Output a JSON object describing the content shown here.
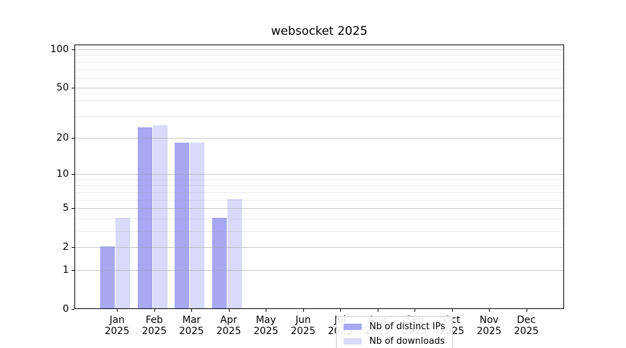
{
  "chart_data": {
    "type": "bar",
    "title": "websocket 2025",
    "scale": "log1p",
    "xlabel": "",
    "ylabel": "",
    "ylim": [
      0,
      109
    ],
    "grid": true,
    "legend_position": "lower center",
    "categories": [
      {
        "month": "Jan",
        "year": "2025"
      },
      {
        "month": "Feb",
        "year": "2025"
      },
      {
        "month": "Mar",
        "year": "2025"
      },
      {
        "month": "Apr",
        "year": "2025"
      },
      {
        "month": "May",
        "year": "2025"
      },
      {
        "month": "Jun",
        "year": "2025"
      },
      {
        "month": "Jul",
        "year": "2025"
      },
      {
        "month": "Aug",
        "year": "2025"
      },
      {
        "month": "Sep",
        "year": "2025"
      },
      {
        "month": "Oct",
        "year": "2025"
      },
      {
        "month": "Nov",
        "year": "2025"
      },
      {
        "month": "Dec",
        "year": "2025"
      }
    ],
    "series": [
      {
        "name": "Nb of distinct IPs",
        "color": "#a7a7f2",
        "values": [
          2,
          24,
          18,
          4,
          0,
          0,
          0,
          0,
          0,
          0,
          0,
          0
        ]
      },
      {
        "name": "Nb of downloads",
        "color": "#d9d9f9",
        "values": [
          4,
          25,
          18,
          6,
          0,
          0,
          0,
          0,
          0,
          0,
          0,
          0
        ]
      }
    ],
    "yticks": [
      0,
      1,
      2,
      5,
      10,
      20,
      50,
      100
    ],
    "yticks_minor": [
      3,
      4,
      6,
      7,
      8,
      9,
      30,
      40,
      60,
      70,
      80,
      90
    ]
  }
}
